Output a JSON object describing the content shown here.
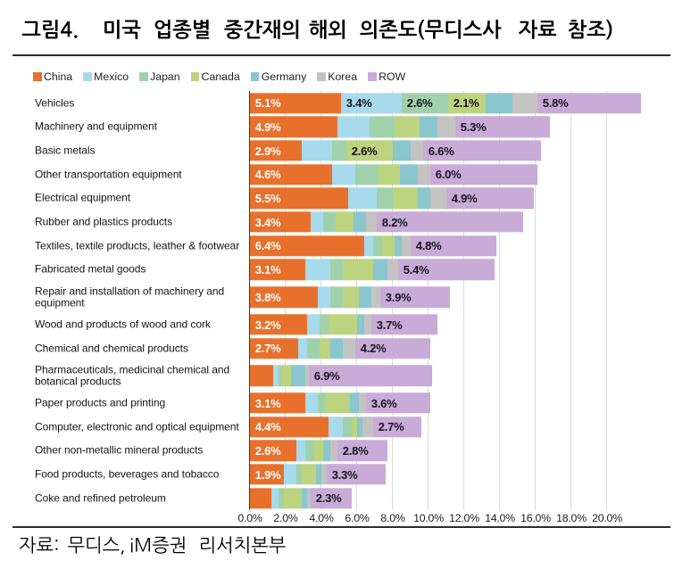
{
  "figure": {
    "label": "그림4.",
    "title": "그림4.  미국 업종별 중간재의 해외 의존도(무디스사 자료 참조)",
    "source": "자료: 무디스, iM증권 리서치본부"
  },
  "chart_data": {
    "type": "bar",
    "orientation": "horizontal",
    "stacked": true,
    "unit": "%",
    "title": "미국 업종별 중간재의 해외 의존도(무디스사 자료 참조)",
    "legend_position": "top",
    "grid": true,
    "x_axis": {
      "ticks": [
        "0.0%",
        "2.0%",
        "4.0%",
        "6.0%",
        "8.0%",
        "10.0%",
        "12.0%",
        "14.0%",
        "16.0%",
        "18.0%",
        "20.0%"
      ],
      "min": 0.0,
      "max": 20.0,
      "tick_step": 2.0
    },
    "categories": [
      {
        "label": "Vehicles"
      },
      {
        "label": "Machinery and equipment"
      },
      {
        "label": "Basic metals"
      },
      {
        "label": "Other transportation equipment"
      },
      {
        "label": "Electrical equipment"
      },
      {
        "label": "Rubber and plastics products"
      },
      {
        "label": "Textiles, textile products, leather & footwear"
      },
      {
        "label": "Fabricated metal goods"
      },
      {
        "label": "Repair and installation of machinery and equipment",
        "lines": [
          "Repair and installation of machinery and",
          "equipment"
        ]
      },
      {
        "label": "Wood and products of wood and cork"
      },
      {
        "label": "Chemical and chemical products"
      },
      {
        "label": "Pharmaceuticals, medicinal chemical and botanical products",
        "lines": [
          "Pharmaceuticals, medicinal chemical and",
          "botanical products"
        ]
      },
      {
        "label": "Paper products and printing"
      },
      {
        "label": "Computer, electronic and optical equipment"
      },
      {
        "label": "Other non-metallic mineral products"
      },
      {
        "label": "Food products, beverages and tobacco"
      },
      {
        "label": "Coke and refined petroleum"
      }
    ],
    "series": [
      {
        "name": "China",
        "color": "#E7712C",
        "values": [
          5.1,
          4.9,
          2.9,
          4.6,
          5.5,
          3.4,
          6.4,
          3.1,
          3.8,
          3.2,
          2.7,
          1.3,
          3.1,
          4.4,
          2.6,
          1.9,
          1.2
        ],
        "labels": [
          "5.1%",
          "4.9%",
          "2.9%",
          "4.6%",
          "5.5%",
          "3.4%",
          "6.4%",
          "3.1%",
          "3.8%",
          "3.2%",
          "2.7%",
          null,
          "3.1%",
          "4.4%",
          "2.6%",
          "1.9%",
          null
        ]
      },
      {
        "name": "Mexico",
        "color": "#A7DAEB",
        "values": [
          3.4,
          1.8,
          1.7,
          1.3,
          1.6,
          0.7,
          0.5,
          1.4,
          0.7,
          0.7,
          0.5,
          0.3,
          0.7,
          0.8,
          0.5,
          0.7,
          0.4
        ],
        "labels": [
          "3.4%",
          null,
          null,
          null,
          null,
          null,
          null,
          null,
          null,
          null,
          null,
          null,
          null,
          null,
          null,
          null,
          null
        ]
      },
      {
        "name": "Japan",
        "color": "#A1D1AB",
        "values": [
          2.6,
          1.4,
          0.8,
          1.3,
          0.9,
          0.7,
          0.5,
          0.7,
          0.7,
          0.5,
          0.7,
          0.2,
          0.4,
          0.5,
          0.5,
          0.3,
          0.3
        ],
        "labels": [
          "2.6%",
          null,
          null,
          null,
          null,
          null,
          null,
          null,
          null,
          null,
          null,
          null,
          null,
          null,
          null,
          null,
          null
        ]
      },
      {
        "name": "Canada",
        "color": "#BCD37F",
        "values": [
          2.1,
          1.4,
          2.6,
          1.2,
          1.4,
          1.0,
          0.7,
          1.7,
          0.9,
          1.6,
          0.6,
          0.5,
          1.4,
          0.3,
          0.5,
          0.8,
          1.0
        ],
        "labels": [
          "2.1%",
          null,
          "2.6%",
          null,
          null,
          null,
          null,
          null,
          null,
          null,
          null,
          null,
          null,
          null,
          null,
          null,
          null
        ]
      },
      {
        "name": "Germany",
        "color": "#8AC6CE",
        "values": [
          1.5,
          1.0,
          1.0,
          1.0,
          0.7,
          0.7,
          0.4,
          0.8,
          0.7,
          0.4,
          0.7,
          0.8,
          0.5,
          0.3,
          0.4,
          0.3,
          0.3
        ],
        "labels": [
          null,
          null,
          null,
          null,
          null,
          null,
          null,
          null,
          null,
          null,
          null,
          null,
          null,
          null,
          null,
          null,
          null
        ]
      },
      {
        "name": "Korea",
        "color": "#C5C3C2",
        "values": [
          1.4,
          1.0,
          0.7,
          0.7,
          0.9,
          0.6,
          0.5,
          0.6,
          0.5,
          0.4,
          0.7,
          0.2,
          0.4,
          0.6,
          0.4,
          0.3,
          0.2
        ],
        "labels": [
          null,
          null,
          null,
          null,
          null,
          null,
          null,
          null,
          null,
          null,
          null,
          null,
          null,
          null,
          null,
          null,
          null
        ]
      },
      {
        "name": "ROW",
        "color": "#C8ABD7",
        "values": [
          5.8,
          5.3,
          6.6,
          6.0,
          4.9,
          8.2,
          4.8,
          5.4,
          3.9,
          3.7,
          4.2,
          6.9,
          3.6,
          2.7,
          2.8,
          3.3,
          2.3
        ],
        "labels": [
          "5.8%",
          "5.3%",
          "6.6%",
          "6.0%",
          "4.9%",
          "8.2%",
          "4.8%",
          "5.4%",
          "3.9%",
          "3.7%",
          "4.2%",
          "6.9%",
          "3.6%",
          "2.7%",
          "2.8%",
          "3.3%",
          "2.3%"
        ]
      }
    ]
  }
}
